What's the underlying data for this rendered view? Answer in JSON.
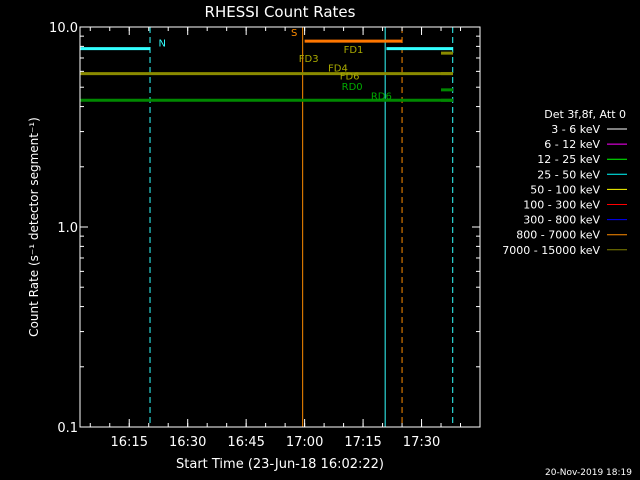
{
  "chart_data": {
    "type": "line",
    "title": "RHESSI Count Rates",
    "xlabel": "Start Time (23-Jun-18 16:02:22)",
    "ylabel": "Count Rate (s⁻¹ detector segment⁻¹)",
    "y_scale": "log",
    "ylim": [
      0.1,
      10.0
    ],
    "xlim": [
      "16:02:22",
      "17:45:00"
    ],
    "x_ticks": [
      "16:15",
      "16:30",
      "16:45",
      "17:00",
      "17:15",
      "17:30"
    ],
    "y_ticks": [
      "0.1",
      "1.0",
      "10.0"
    ],
    "grid": false,
    "legend_position": "right",
    "legend": {
      "header": "Det 3f,8f, Att 0",
      "entries": [
        {
          "label": "3 - 6 keV",
          "color": "#ffffff"
        },
        {
          "label": "6 - 12 keV",
          "color": "#ff00ff"
        },
        {
          "label": "12 - 25 keV",
          "color": "#00ff00"
        },
        {
          "label": "25 - 50 keV",
          "color": "#00ffff"
        },
        {
          "label": "50 - 100 keV",
          "color": "#ffff00"
        },
        {
          "label": "100 - 300 keV",
          "color": "#ff0000"
        },
        {
          "label": "300 - 800 keV",
          "color": "#0000ff"
        },
        {
          "label": "800 - 7000 keV",
          "color": "#ff8c00"
        },
        {
          "label": "7000 - 15000 keV",
          "color": "#808000"
        }
      ]
    },
    "series": [
      {
        "color": "#33ffff",
        "segments": [
          {
            "start": "16:02:22",
            "end": "16:20:20",
            "value": 7.8
          },
          {
            "start": "17:21:00",
            "end": "17:38:00",
            "value": 7.8
          }
        ]
      },
      {
        "color": "#ff7700",
        "segments": [
          {
            "start": "17:00:00",
            "end": "17:25:00",
            "value": 8.5
          }
        ]
      },
      {
        "color": "#8a8a00",
        "segments": [
          {
            "start": "16:02:22",
            "end": "17:38:00",
            "value": 5.85
          }
        ]
      },
      {
        "color": "#008800",
        "segments": [
          {
            "start": "16:02:22",
            "end": "17:38:00",
            "value": 4.3
          }
        ]
      }
    ],
    "vertical_markers": [
      {
        "time": "16:02:22",
        "color": "#33ffff",
        "style": "solid"
      },
      {
        "time": "16:20:20",
        "color": "#33ffff",
        "style": "dashed"
      },
      {
        "time": "16:59:30",
        "color": "#ff8c00",
        "style": "solid"
      },
      {
        "time": "17:20:40",
        "color": "#33ffff",
        "style": "solid"
      },
      {
        "time": "17:25:00",
        "color": "#ff8c00",
        "style": "dashed"
      },
      {
        "time": "17:38:00",
        "color": "#33ffff",
        "style": "dashed"
      }
    ],
    "annotations": [
      {
        "text": "N",
        "color": "#33ffff",
        "time": "16:22:30",
        "value": 8.0
      },
      {
        "text": "S",
        "color": "#ff8c00",
        "time": "16:56:30",
        "value": 9.0
      },
      {
        "text": "FD3",
        "color": "#a8a800",
        "time": "16:58:30",
        "value": 6.7
      },
      {
        "text": "FD1",
        "color": "#a8a800",
        "time": "17:10:00",
        "value": 7.4
      },
      {
        "text": "FD4",
        "color": "#a8a800",
        "time": "17:06:00",
        "value": 6.0
      },
      {
        "text": "FD6",
        "color": "#a8a800",
        "time": "17:09:00",
        "value": 5.45
      },
      {
        "text": "RD0",
        "color": "#00aa00",
        "time": "17:09:30",
        "value": 4.85
      },
      {
        "text": "RD6",
        "color": "#00aa00",
        "time": "17:17:00",
        "value": 4.35
      }
    ],
    "footer": "20-Nov-2019 18:19"
  }
}
